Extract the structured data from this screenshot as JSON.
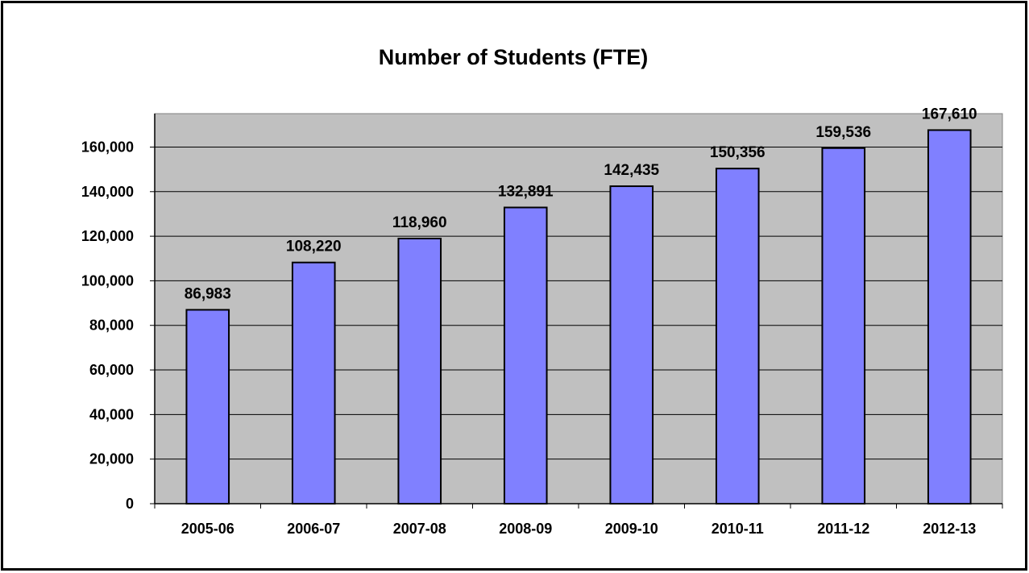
{
  "chart_data": {
    "type": "bar",
    "title": "Number of Students (FTE)",
    "xlabel": "",
    "ylabel": "",
    "categories": [
      "2005-06",
      "2006-07",
      "2007-08",
      "2008-09",
      "2009-10",
      "2010-11",
      "2011-12",
      "2012-13"
    ],
    "values": [
      86983,
      108220,
      118960,
      132891,
      142435,
      150356,
      159536,
      167610
    ],
    "value_labels": [
      "86,983",
      "108,220",
      "118,960",
      "132,891",
      "142,435",
      "150,356",
      "159,536",
      "167,610"
    ],
    "ylim": [
      0,
      175000
    ],
    "y_ticks": [
      0,
      20000,
      40000,
      60000,
      80000,
      100000,
      120000,
      140000,
      160000
    ],
    "y_tick_labels": [
      "0",
      "20,000",
      "40,000",
      "60,000",
      "80,000",
      "100,000",
      "120,000",
      "140,000",
      "160,000"
    ],
    "grid": true,
    "legend": "none",
    "colors": {
      "bar_fill": "#8080ff",
      "bar_stroke": "#000000",
      "plot_background": "#c0c0c0",
      "gridline": "#000000"
    }
  }
}
